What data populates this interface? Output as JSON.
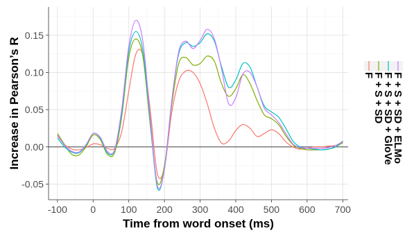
{
  "chart_data": {
    "type": "line",
    "xlabel": "Time from word onset (ms)",
    "ylabel": "Increase in Pearson’s R",
    "xlim": [
      -125,
      715
    ],
    "ylim": [
      -0.071,
      0.188
    ],
    "x_ticks": [
      -100,
      0,
      100,
      200,
      300,
      400,
      500,
      600,
      700
    ],
    "x_tick_labels": [
      "-100",
      "0",
      "100",
      "200",
      "300",
      "400",
      "500",
      "600",
      "700"
    ],
    "y_ticks": [
      -0.05,
      0.0,
      0.05,
      0.1,
      0.15
    ],
    "y_tick_labels": [
      "-0.05",
      "0.00",
      "0.05",
      "0.10",
      "0.15"
    ],
    "grid": true,
    "zero_line": true,
    "legend_position": "right",
    "x": [
      -100,
      -80,
      -60,
      -40,
      -20,
      0,
      20,
      40,
      60,
      80,
      100,
      120,
      140,
      160,
      180,
      200,
      220,
      240,
      260,
      280,
      300,
      320,
      340,
      360,
      380,
      400,
      420,
      440,
      460,
      480,
      500,
      520,
      540,
      560,
      580,
      600,
      620,
      640,
      660,
      680,
      700
    ],
    "series": [
      {
        "name": "F",
        "color": "#F8766D",
        "values": [
          0.015,
          0.003,
          -0.003,
          -0.004,
          -0.001,
          0.004,
          0.003,
          -0.002,
          -0.002,
          0.02,
          0.075,
          0.125,
          0.122,
          0.05,
          -0.036,
          -0.028,
          0.045,
          0.088,
          0.102,
          0.1,
          0.085,
          0.058,
          0.025,
          0.005,
          0.008,
          0.022,
          0.03,
          0.025,
          0.014,
          0.018,
          0.023,
          0.018,
          0.007,
          0.0,
          -0.003,
          -0.002,
          0.0,
          0.0,
          0.001,
          0.002,
          0.005
        ]
      },
      {
        "name": "F + S + SD",
        "color": "#7CAE00",
        "values": [
          0.018,
          0.003,
          -0.01,
          -0.011,
          0.0,
          0.016,
          0.01,
          -0.01,
          -0.008,
          0.04,
          0.12,
          0.145,
          0.12,
          0.03,
          -0.048,
          -0.025,
          0.055,
          0.112,
          0.12,
          0.11,
          0.112,
          0.122,
          0.115,
          0.085,
          0.068,
          0.078,
          0.097,
          0.085,
          0.062,
          0.043,
          0.038,
          0.03,
          0.015,
          0.003,
          -0.002,
          -0.004,
          -0.004,
          -0.004,
          -0.003,
          0.0,
          0.006
        ]
      },
      {
        "name": "F + S + SD + GloVe",
        "color": "#00BFC4",
        "values": [
          0.012,
          0.0,
          -0.007,
          -0.008,
          0.002,
          0.018,
          0.012,
          -0.008,
          -0.005,
          0.045,
          0.128,
          0.155,
          0.128,
          0.035,
          -0.055,
          -0.03,
          0.06,
          0.125,
          0.14,
          0.135,
          0.14,
          0.152,
          0.142,
          0.108,
          0.08,
          0.09,
          0.112,
          0.107,
          0.08,
          0.055,
          0.047,
          0.04,
          0.025,
          0.008,
          0.0,
          -0.002,
          -0.003,
          -0.004,
          -0.003,
          0.0,
          0.008
        ]
      },
      {
        "name": "F + S + SD + ELMo",
        "color": "#C77CFF",
        "values": [
          0.016,
          0.002,
          -0.006,
          -0.007,
          0.003,
          0.018,
          0.013,
          -0.006,
          -0.004,
          0.05,
          0.135,
          0.17,
          0.14,
          0.04,
          -0.052,
          -0.03,
          0.06,
          0.128,
          0.142,
          0.132,
          0.143,
          0.158,
          0.145,
          0.105,
          0.058,
          0.066,
          0.098,
          0.1,
          0.08,
          0.052,
          0.043,
          0.033,
          0.018,
          0.004,
          -0.001,
          -0.002,
          -0.002,
          -0.002,
          -0.001,
          0.002,
          0.007
        ]
      }
    ]
  }
}
